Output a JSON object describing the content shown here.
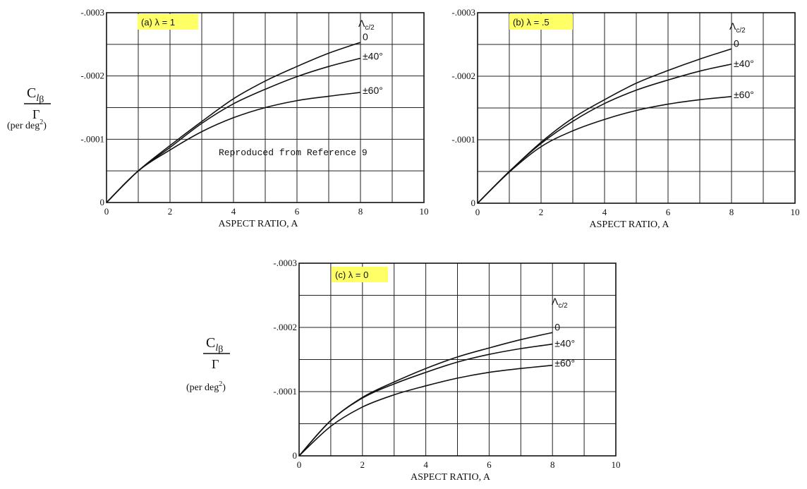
{
  "figure": {
    "y_label_main": "C",
    "y_label_sub_l": "l",
    "y_label_sub_beta": "β",
    "y_label_den": "Γ",
    "y_label_units_prefix": "(per deg",
    "y_label_units_sup": "2",
    "y_label_units_suffix": ")",
    "legend_symbol": "Λ",
    "legend_sub": "c/2",
    "note": "Reproduced from Reference 9"
  },
  "colors": {
    "axis": "#111111",
    "grid": "#222222",
    "curve": "#111111",
    "highlight": "#ffff66"
  },
  "chart_data": [
    {
      "type": "line",
      "panel_label": "(a)  λ = 1",
      "xlabel": "ASPECT RATIO, A",
      "xlim": [
        0,
        10
      ],
      "ylim": [
        0,
        -0.0003
      ],
      "xticks": [
        "0",
        "2",
        "4",
        "6",
        "8",
        "10"
      ],
      "yticks": [
        "0",
        "-.0001",
        "-.0002",
        "-.0003"
      ],
      "grid": true,
      "series": [
        {
          "name": "0",
          "x": [
            0,
            1,
            2,
            3,
            4,
            5,
            6,
            7,
            8
          ],
          "y": [
            0,
            -5e-05,
            -9e-05,
            -0.000128,
            -0.000164,
            -0.000192,
            -0.000215,
            -0.000236,
            -0.000253
          ]
        },
        {
          "name": "±40°",
          "x": [
            0,
            1,
            2,
            3,
            4,
            5,
            6,
            7,
            8
          ],
          "y": [
            0,
            -5e-05,
            -8.7e-05,
            -0.000125,
            -0.000156,
            -0.000179,
            -0.000199,
            -0.000215,
            -0.000228
          ]
        },
        {
          "name": "±60°",
          "x": [
            0,
            1,
            2,
            3,
            4,
            5,
            6,
            7,
            8
          ],
          "y": [
            0,
            -5e-05,
            -8.3e-05,
            -0.000112,
            -0.000134,
            -0.00015,
            -0.000161,
            -0.000168,
            -0.000174
          ]
        }
      ]
    },
    {
      "type": "line",
      "panel_label": "(b)  λ = .5",
      "xlabel": "ASPECT RATIO, A",
      "xlim": [
        0,
        10
      ],
      "ylim": [
        0,
        -0.0003
      ],
      "xticks": [
        "0",
        "2",
        "4",
        "6",
        "8",
        "10"
      ],
      "yticks": [
        "0",
        "-.0001",
        "-.0002",
        "-.0003"
      ],
      "grid": true,
      "series": [
        {
          "name": "0",
          "x": [
            0,
            1,
            2,
            3,
            4,
            5,
            6,
            7,
            8
          ],
          "y": [
            0,
            -5e-05,
            -9.6e-05,
            -0.000134,
            -0.000163,
            -0.000189,
            -0.000209,
            -0.000227,
            -0.000243
          ]
        },
        {
          "name": "±40°",
          "x": [
            0,
            1,
            2,
            3,
            4,
            5,
            6,
            7,
            8
          ],
          "y": [
            0,
            -5e-05,
            -9.4e-05,
            -0.000129,
            -0.000157,
            -0.000178,
            -0.000194,
            -0.000208,
            -0.000219
          ]
        },
        {
          "name": "±60°",
          "x": [
            0,
            1,
            2,
            3,
            4,
            5,
            6,
            7,
            8
          ],
          "y": [
            0,
            -4.9e-05,
            -8.9e-05,
            -0.000114,
            -0.000132,
            -0.000146,
            -0.000156,
            -0.000163,
            -0.000168
          ]
        }
      ]
    },
    {
      "type": "line",
      "panel_label": "(c)  λ = 0",
      "xlabel": "ASPECT RATIO, A",
      "xlim": [
        0,
        10
      ],
      "ylim": [
        0,
        -0.0003
      ],
      "xticks": [
        "0",
        "2",
        "4",
        "6",
        "8",
        "10"
      ],
      "yticks": [
        "0",
        "-.0001",
        "-.0002",
        "-.0003"
      ],
      "grid": true,
      "series": [
        {
          "name": "0",
          "x": [
            0,
            1,
            2,
            3,
            4,
            5,
            6,
            7,
            8
          ],
          "y": [
            0,
            -5.5e-05,
            -9.1e-05,
            -0.000115,
            -0.000136,
            -0.000154,
            -0.000168,
            -0.000181,
            -0.000192
          ]
        },
        {
          "name": "±40°",
          "x": [
            0,
            1,
            2,
            3,
            4,
            5,
            6,
            7,
            8
          ],
          "y": [
            0,
            -5.5e-05,
            -9e-05,
            -0.000112,
            -0.00013,
            -0.000146,
            -0.000158,
            -0.000167,
            -0.000174
          ]
        },
        {
          "name": "±60°",
          "x": [
            0,
            1,
            2,
            3,
            4,
            5,
            6,
            7,
            8
          ],
          "y": [
            0,
            -4.6e-05,
            -7.6e-05,
            -9.5e-05,
            -0.000109,
            -0.000121,
            -0.00013,
            -0.000136,
            -0.000141
          ]
        }
      ]
    }
  ]
}
